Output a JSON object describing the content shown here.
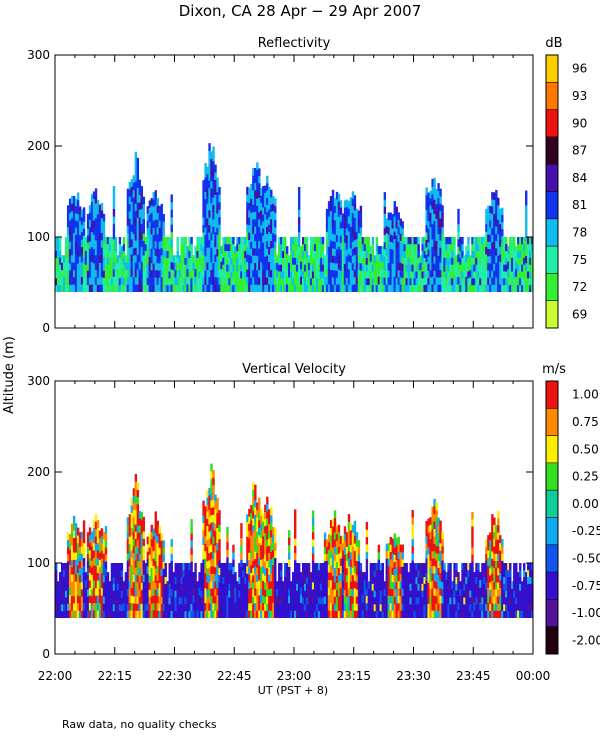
{
  "figure_title": "Dixon, CA 28 Apr − 29 Apr 2007",
  "y_axis_label": "Altitude (m)",
  "x_axis_label": "UT  (PST + 8)",
  "footnote": "Raw data, no quality checks",
  "chart_data": [
    {
      "type": "heatmap",
      "title": "Reflectivity",
      "unit": "dB",
      "xlabel": "UT  (PST + 8)",
      "ylabel": "Altitude (m)",
      "x_ticks": [
        "22:00",
        "22:15",
        "22:30",
        "22:45",
        "23:00",
        "23:15",
        "23:30",
        "23:45",
        "00:00"
      ],
      "y_ticks": [
        0,
        100,
        200,
        300
      ],
      "ylim": [
        0,
        300
      ],
      "colorbar": {
        "labels": [
          "69",
          "72",
          "75",
          "78",
          "81",
          "84",
          "87",
          "90",
          "93",
          "96"
        ],
        "colors": [
          "#ccff33",
          "#33ee33",
          "#22eeaa",
          "#11bbee",
          "#1133ee",
          "#4411aa",
          "#330022",
          "#ee1111",
          "#ff7700",
          "#ffcc00"
        ]
      },
      "base_altitude": 40,
      "plume_events": [
        {
          "time": "22:05",
          "top_altitude": 160
        },
        {
          "time": "22:10",
          "top_altitude": 160
        },
        {
          "time": "22:20",
          "top_altitude": 200
        },
        {
          "time": "22:25",
          "top_altitude": 160
        },
        {
          "time": "22:39",
          "top_altitude": 220
        },
        {
          "time": "22:50",
          "top_altitude": 200
        },
        {
          "time": "22:53",
          "top_altitude": 180
        },
        {
          "time": "23:10",
          "top_altitude": 160
        },
        {
          "time": "23:14",
          "top_altitude": 160
        },
        {
          "time": "23:25",
          "top_altitude": 140
        },
        {
          "time": "23:35",
          "top_altitude": 180
        },
        {
          "time": "23:50",
          "top_altitude": 160
        }
      ]
    },
    {
      "type": "heatmap",
      "title": "Vertical Velocity",
      "unit": "m/s",
      "xlabel": "UT  (PST + 8)",
      "ylabel": "Altitude (m)",
      "x_ticks": [
        "22:00",
        "22:15",
        "22:30",
        "22:45",
        "23:00",
        "23:15",
        "23:30",
        "23:45",
        "00:00"
      ],
      "y_ticks": [
        0,
        100,
        200,
        300
      ],
      "ylim": [
        0,
        300
      ],
      "colorbar": {
        "labels": [
          "-2.00",
          "-1.00",
          "-0.75",
          "-0.50",
          "-0.25",
          "0.00",
          "0.25",
          "0.50",
          "0.75",
          "1.00"
        ],
        "colors": [
          "#220011",
          "#551199",
          "#3311cc",
          "#1155ee",
          "#11aaee",
          "#11cc99",
          "#33dd22",
          "#ffee00",
          "#ff8800",
          "#ee1111"
        ]
      },
      "base_altitude": 40,
      "plume_events": [
        {
          "time": "22:05",
          "top_altitude": 160
        },
        {
          "time": "22:10",
          "top_altitude": 160
        },
        {
          "time": "22:20",
          "top_altitude": 200
        },
        {
          "time": "22:25",
          "top_altitude": 160
        },
        {
          "time": "22:39",
          "top_altitude": 220
        },
        {
          "time": "22:50",
          "top_altitude": 200
        },
        {
          "time": "22:53",
          "top_altitude": 180
        },
        {
          "time": "23:10",
          "top_altitude": 160
        },
        {
          "time": "23:14",
          "top_altitude": 160
        },
        {
          "time": "23:25",
          "top_altitude": 140
        },
        {
          "time": "23:35",
          "top_altitude": 180
        },
        {
          "time": "23:50",
          "top_altitude": 160
        }
      ]
    }
  ]
}
